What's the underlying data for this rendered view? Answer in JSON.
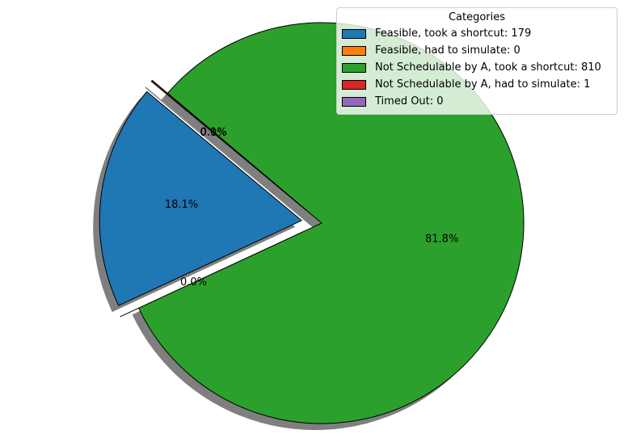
{
  "chart_data": {
    "type": "pie",
    "legend_title": "Categories",
    "legend_placement": "top-right",
    "shadow": true,
    "start_angle_deg": 140,
    "slices": [
      {
        "legend": "Feasible, took a shortcut: 179",
        "value": 179,
        "pct_label": "18.1%",
        "color": "#1f77b4",
        "explode": 0.1
      },
      {
        "legend": "Feasible, had to simulate: 0",
        "value": 0,
        "pct_label": "0.0%",
        "color": "#ff7f0e",
        "explode": 0.1
      },
      {
        "legend": "Not Schedulable by A, took a shortcut: 810",
        "value": 810,
        "pct_label": "81.8%",
        "color": "#2ca02c",
        "explode": 0
      },
      {
        "legend": "Not Schedulable by A, had to simulate: 1",
        "value": 1,
        "pct_label": "0.1%",
        "color": "#d62728",
        "explode": 0.1
      },
      {
        "legend": "Timed Out: 0",
        "value": 0,
        "pct_label": "0.0%",
        "color": "#9467bd",
        "explode": 0.1
      }
    ]
  }
}
